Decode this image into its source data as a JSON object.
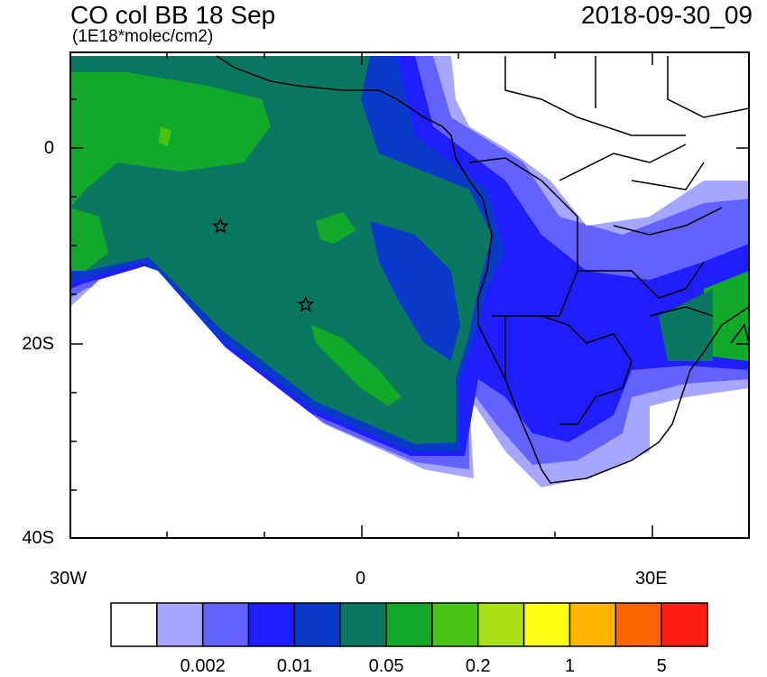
{
  "header": {
    "title": "CO col BB 18 Sep",
    "units": "(1E18*molec/cm2)",
    "timestamp": "2018-09-30_09"
  },
  "axes": {
    "y_ticks": [
      "0",
      "20S",
      "40S"
    ],
    "x_ticks": [
      "30W",
      "0",
      "30E"
    ]
  },
  "colorbar": {
    "colors": [
      "#ffffff",
      "#a6a6ff",
      "#6262ff",
      "#1e1eff",
      "#0a3ac8",
      "#0a7860",
      "#12a82a",
      "#4ac414",
      "#a8e014",
      "#ffff14",
      "#ffb400",
      "#ff6400",
      "#ff1e14"
    ],
    "labels": [
      "0.002",
      "0.01",
      "0.05",
      "0.2",
      "1",
      "5"
    ]
  },
  "map": {
    "markers": [
      {
        "name": "star-1",
        "lon": -14.5,
        "lat": -8
      },
      {
        "name": "star-2",
        "lon": -5.7,
        "lat": -16
      }
    ]
  }
}
